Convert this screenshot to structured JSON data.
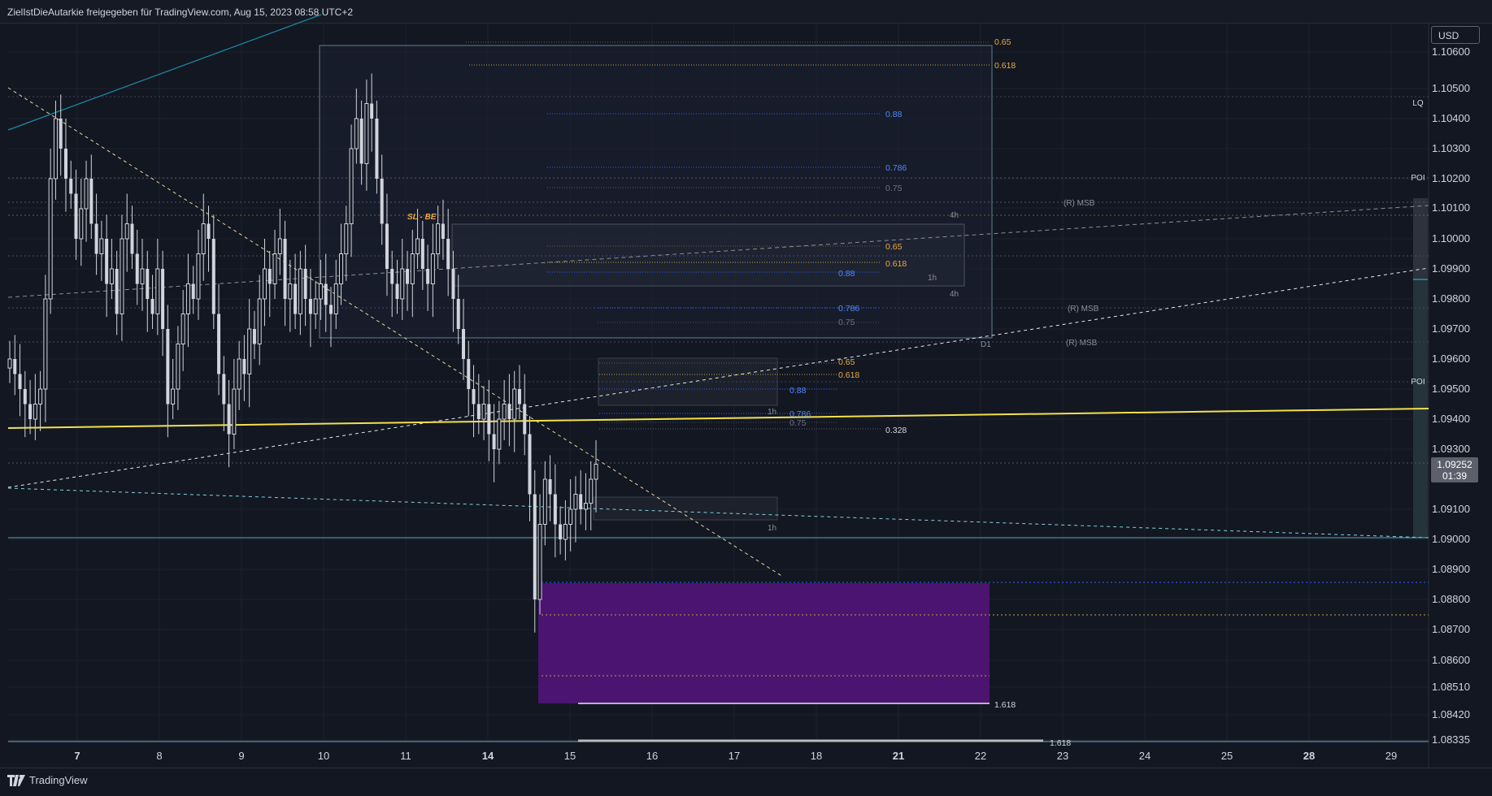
{
  "header": {
    "share_text": "ZielIstDieAutarkie freigegeben für TradingView.com, Aug 15, 2023 08:58 UTC+2"
  },
  "currency_button": "USD",
  "footer": {
    "brand": "TradingView",
    "logo_icon": "tradingview-logo-icon"
  },
  "colors": {
    "background": "#131722",
    "candle": "#d1d4dc",
    "trendline_yellow": "#f2e14c",
    "zone_purple": "#4a1470",
    "fib_blue": "#2962ff",
    "fib_orange": "#e8a94a",
    "teal": "#26c6da"
  },
  "chart_data": {
    "type": "candlestick",
    "symbol_currency": "USD",
    "ylim": [
      1.08335,
      1.1066
    ],
    "y_ticks": [
      "1.10600",
      "1.10500",
      "1.10400",
      "1.10300",
      "1.10200",
      "1.10100",
      "1.10000",
      "1.09900",
      "1.09800",
      "1.09700",
      "1.09600",
      "1.09500",
      "1.09400",
      "1.09300",
      "1.09100",
      "1.09000",
      "1.08900",
      "1.08800",
      "1.08700",
      "1.08600",
      "1.08510",
      "1.08420",
      "1.08335"
    ],
    "x_ticks": [
      {
        "label": "7",
        "bold": true
      },
      {
        "label": "8",
        "bold": false
      },
      {
        "label": "9",
        "bold": false
      },
      {
        "label": "10",
        "bold": false
      },
      {
        "label": "11",
        "bold": false
      },
      {
        "label": "14",
        "bold": true
      },
      {
        "label": "15",
        "bold": false
      },
      {
        "label": "16",
        "bold": false
      },
      {
        "label": "17",
        "bold": false
      },
      {
        "label": "18",
        "bold": false
      },
      {
        "label": "21",
        "bold": true
      },
      {
        "label": "22",
        "bold": false
      },
      {
        "label": "23",
        "bold": false
      },
      {
        "label": "24",
        "bold": false
      },
      {
        "label": "25",
        "bold": false
      },
      {
        "label": "28",
        "bold": true
      },
      {
        "label": "29",
        "bold": false
      }
    ],
    "current_price": {
      "value": "1.09252",
      "countdown": "01:39"
    },
    "right_labels": [
      "LQ",
      "POI",
      "POI"
    ],
    "fib_labels": [
      {
        "text": "0.65",
        "color": "orange"
      },
      {
        "text": "0.618",
        "color": "orange"
      },
      {
        "text": "0.88",
        "color": "blue"
      },
      {
        "text": "0.786",
        "color": "blue"
      },
      {
        "text": "0.75",
        "color": "gray"
      },
      {
        "text": "0.65",
        "color": "orange"
      },
      {
        "text": "0.618",
        "color": "orange"
      },
      {
        "text": "0.88",
        "color": "blue"
      },
      {
        "text": "0.786",
        "color": "blue"
      },
      {
        "text": "0.75",
        "color": "gray"
      },
      {
        "text": "0.65",
        "color": "orange"
      },
      {
        "text": "0.618",
        "color": "orange"
      },
      {
        "text": "0.88",
        "color": "blue"
      },
      {
        "text": "0.786",
        "color": "blue"
      },
      {
        "text": "0.75",
        "color": "gray"
      },
      {
        "text": "0.328",
        "color": "white"
      },
      {
        "text": "1.618",
        "color": "white"
      },
      {
        "text": "1.618",
        "color": "white"
      }
    ],
    "structure_labels": [
      "(R) MSB",
      "(R) MSB",
      "(R) MSB",
      "SL - BE"
    ],
    "timeframe_labels": [
      "4h",
      "4h",
      "1h",
      "1h",
      "1h",
      "D1"
    ],
    "close_prices": [
      1.096,
      1.0955,
      1.095,
      1.0945,
      1.094,
      1.0945,
      1.095,
      1.098,
      1.102,
      1.104,
      1.103,
      1.102,
      1.1015,
      1.1,
      1.101,
      1.102,
      1.1005,
      1.0995,
      1.1,
      1.0985,
      1.099,
      1.0975,
      1.1,
      1.1005,
      1.0995,
      1.0985,
      1.099,
      1.098,
      1.0975,
      1.099,
      1.097,
      1.0945,
      1.095,
      1.0965,
      1.0975,
      1.0985,
      1.098,
      1.0995,
      1.1005,
      1.1,
      1.0975,
      1.0955,
      1.0945,
      1.0935,
      1.095,
      1.096,
      1.0955,
      1.097,
      1.0965,
      1.098,
      1.099,
      1.0985,
      1.0995,
      1.1,
      1.098,
      1.0985,
      1.0975,
      1.099,
      1.098,
      1.0975,
      1.098,
      1.0985,
      1.0978,
      1.0975,
      1.0985,
      1.0995,
      1.1005,
      1.103,
      1.104,
      1.1025,
      1.1045,
      1.104,
      1.102,
      1.1005,
      1.099,
      1.0985,
      1.098,
      1.099,
      1.0985,
      1.0995,
      1.1,
      1.099,
      1.0985,
      1.0995,
      1.1005,
      1.1,
      1.099,
      1.098,
      1.097,
      1.096,
      1.095,
      1.0945,
      1.094,
      1.0945,
      1.0935,
      1.093,
      1.094,
      1.0945,
      1.094,
      1.095,
      1.0945,
      1.0935,
      1.0915,
      1.088,
      1.0905,
      1.092,
      1.0915,
      1.0905,
      1.09,
      1.0905,
      1.091,
      1.0915,
      1.091,
      1.0912,
      1.092,
      1.0925
    ]
  }
}
